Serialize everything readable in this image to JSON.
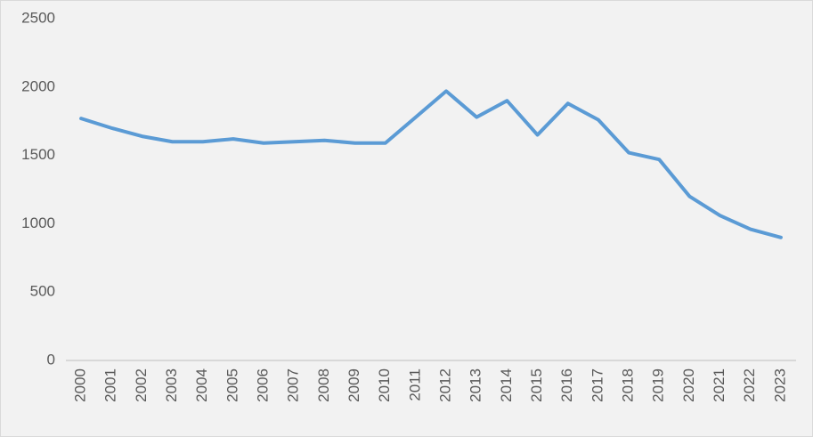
{
  "chart_data": {
    "type": "line",
    "categories": [
      "2000",
      "2001",
      "2002",
      "2003",
      "2004",
      "2005",
      "2006",
      "2007",
      "2008",
      "2009",
      "2010",
      "2011",
      "2012",
      "2013",
      "2014",
      "2015",
      "2016",
      "2017",
      "2018",
      "2019",
      "2020",
      "2021",
      "2022",
      "2023"
    ],
    "values": [
      1770,
      1700,
      1640,
      1600,
      1600,
      1620,
      1590,
      1600,
      1610,
      1590,
      1590,
      1780,
      1970,
      1780,
      1900,
      1650,
      1880,
      1760,
      1520,
      1470,
      1200,
      1060,
      960,
      900
    ],
    "color": "#5b9bd5",
    "ylim": [
      0,
      2500
    ],
    "yticks": [
      0,
      500,
      1000,
      1500,
      2000,
      2500
    ],
    "grid": false
  }
}
